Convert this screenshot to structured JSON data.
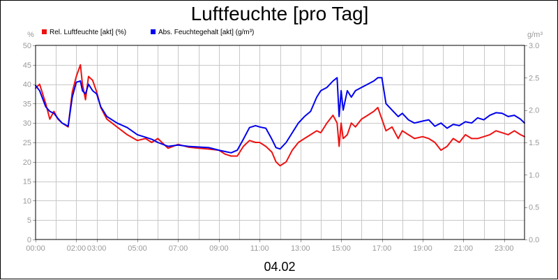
{
  "chart_data": {
    "type": "line",
    "title": "Luftfeuchte [pro Tag]",
    "date_label": "04.02",
    "left_unit": "%",
    "right_unit": "g/m³",
    "ylim_left": [
      0,
      50
    ],
    "ylim_right": [
      0,
      3
    ],
    "y_ticks_left": [
      "0",
      "5",
      "10",
      "15",
      "20",
      "25",
      "30",
      "35",
      "40",
      "45",
      "50"
    ],
    "y_ticks_right": [
      "0.0",
      "0.5",
      "1.0",
      "1.5",
      "2.0",
      "2.5",
      "3.0"
    ],
    "xlim": [
      0,
      24
    ],
    "x_ticks": [
      {
        "h": 0,
        "label": "00:00"
      },
      {
        "h": 2,
        "label": "02:00"
      },
      {
        "h": 3,
        "label": "03:00"
      },
      {
        "h": 5,
        "label": "05:00"
      },
      {
        "h": 7,
        "label": "07:00"
      },
      {
        "h": 9,
        "label": "09:00"
      },
      {
        "h": 11,
        "label": "11:00"
      },
      {
        "h": 13,
        "label": "13:00"
      },
      {
        "h": 15,
        "label": "15:00"
      },
      {
        "h": 17,
        "label": "17:00"
      },
      {
        "h": 19,
        "label": "19:00"
      },
      {
        "h": 21,
        "label": "21:00"
      },
      {
        "h": 23,
        "label": "23:00"
      }
    ],
    "grid": true,
    "legend_position": "top-left",
    "series": [
      {
        "name": "Rel. Luftfeuchte [akt] (%)",
        "axis": "left",
        "color": "#ee1111",
        "x": [
          0,
          0.2,
          0.5,
          0.7,
          0.9,
          1.1,
          1.3,
          1.6,
          1.8,
          2.0,
          2.2,
          2.3,
          2.45,
          2.6,
          2.8,
          3.0,
          3.2,
          3.5,
          4.0,
          4.5,
          5.0,
          5.4,
          5.7,
          6.0,
          6.5,
          7.0,
          7.5,
          8.0,
          8.5,
          9.0,
          9.3,
          9.6,
          9.9,
          10.2,
          10.5,
          10.8,
          11.0,
          11.3,
          11.6,
          11.8,
          12.0,
          12.3,
          12.6,
          12.9,
          13.2,
          13.5,
          13.8,
          14.0,
          14.3,
          14.6,
          14.8,
          14.9,
          15.0,
          15.1,
          15.3,
          15.5,
          15.7,
          16.0,
          16.3,
          16.6,
          16.8,
          17.0,
          17.2,
          17.5,
          17.8,
          18.0,
          18.3,
          18.6,
          19.0,
          19.3,
          19.6,
          19.9,
          20.2,
          20.5,
          20.8,
          21.1,
          21.4,
          21.7,
          22.0,
          22.3,
          22.6,
          22.9,
          23.2,
          23.5,
          23.8,
          24.0
        ],
        "y": [
          39,
          40,
          35,
          31,
          33,
          31,
          30,
          29,
          38,
          42,
          45,
          40,
          36,
          42,
          41,
          38,
          34,
          31,
          29,
          27,
          25.5,
          26,
          25,
          26,
          23.5,
          24.5,
          23.8,
          23.5,
          23.3,
          23,
          22,
          21.5,
          21.5,
          24,
          25.5,
          25,
          25,
          24,
          22.5,
          20,
          19,
          20,
          23,
          25,
          26,
          27,
          28,
          27.5,
          30,
          32,
          30,
          24,
          30,
          26,
          27,
          30,
          29,
          31,
          32,
          33,
          34,
          31,
          28,
          29,
          26,
          28,
          27,
          26,
          26.5,
          26,
          25,
          23,
          24,
          26,
          25,
          27,
          26,
          26,
          26.5,
          27,
          28,
          27.5,
          27,
          28,
          27,
          26.5
        ]
      },
      {
        "name": "Abs. Feuchtegehalt [akt] (g/m³)",
        "axis": "right",
        "color": "#0000ee",
        "x": [
          0,
          0.2,
          0.5,
          0.7,
          0.9,
          1.1,
          1.3,
          1.6,
          1.8,
          2.0,
          2.2,
          2.3,
          2.45,
          2.6,
          2.8,
          3.0,
          3.2,
          3.5,
          4.0,
          4.5,
          5.0,
          5.4,
          5.7,
          6.0,
          6.5,
          7.0,
          7.5,
          8.0,
          8.5,
          9.0,
          9.3,
          9.6,
          9.9,
          10.2,
          10.5,
          10.8,
          11.0,
          11.3,
          11.6,
          11.8,
          12.0,
          12.3,
          12.6,
          12.9,
          13.2,
          13.5,
          13.8,
          14.0,
          14.3,
          14.6,
          14.8,
          14.9,
          15.0,
          15.1,
          15.3,
          15.5,
          15.7,
          16.0,
          16.3,
          16.6,
          16.8,
          17.0,
          17.2,
          17.5,
          17.8,
          18.0,
          18.3,
          18.6,
          19.0,
          19.3,
          19.6,
          19.9,
          20.2,
          20.5,
          20.8,
          21.1,
          21.4,
          21.7,
          22.0,
          22.3,
          22.6,
          22.9,
          23.2,
          23.5,
          23.8,
          24.0
        ],
        "y": [
          2.38,
          2.3,
          2.05,
          1.98,
          1.95,
          1.87,
          1.8,
          1.75,
          2.2,
          2.43,
          2.45,
          2.3,
          2.25,
          2.4,
          2.3,
          2.25,
          2.05,
          1.9,
          1.8,
          1.73,
          1.62,
          1.58,
          1.55,
          1.5,
          1.44,
          1.46,
          1.44,
          1.43,
          1.42,
          1.38,
          1.36,
          1.34,
          1.38,
          1.55,
          1.73,
          1.76,
          1.74,
          1.72,
          1.55,
          1.42,
          1.4,
          1.5,
          1.65,
          1.8,
          1.9,
          1.98,
          2.2,
          2.3,
          2.35,
          2.45,
          2.5,
          1.9,
          2.3,
          2.0,
          2.3,
          2.2,
          2.3,
          2.35,
          2.4,
          2.45,
          2.5,
          2.5,
          2.1,
          2.0,
          1.9,
          1.95,
          1.85,
          1.8,
          1.83,
          1.85,
          1.75,
          1.8,
          1.72,
          1.78,
          1.76,
          1.82,
          1.8,
          1.88,
          1.85,
          1.92,
          1.96,
          1.95,
          1.9,
          1.92,
          1.86,
          1.8
        ]
      }
    ]
  }
}
